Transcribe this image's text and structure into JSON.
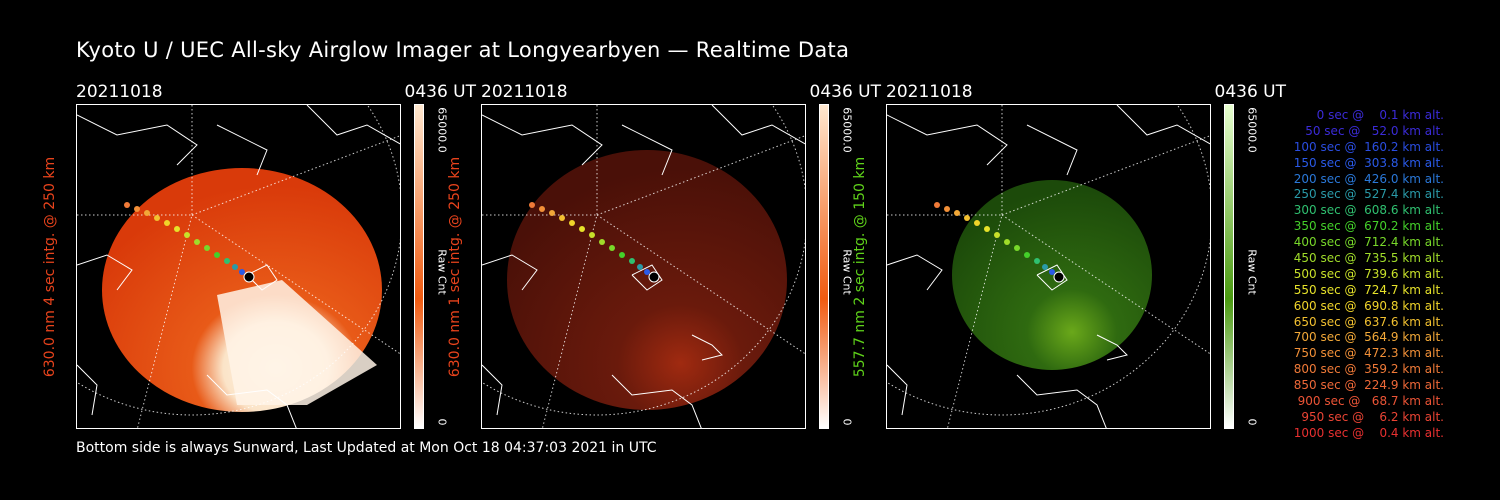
{
  "title": "Kyoto U / UEC All-sky Airglow Imager at Longyearbyen — Realtime Data",
  "footer": "Bottom side is always Sunward, Last Updated at Mon Oct 18 04:37:03 2021 in UTC",
  "panels": [
    {
      "date": "20211018",
      "time": "0436 UT",
      "ylabel": "630.0 nm 4 sec intg. @ 250 km",
      "ylabel_color": "#e8431c",
      "cb_max": "65000.0",
      "cb_unit": "Raw Cnt",
      "cb_min": "0",
      "cb_color": "#f05a10"
    },
    {
      "date": "20211018",
      "time": "0436 UT",
      "ylabel": "630.0 nm 1 sec intg. @ 250 km",
      "ylabel_color": "#e8431c",
      "cb_max": "65000.0",
      "cb_unit": "Raw Cnt",
      "cb_min": "0",
      "cb_color": "#f05a10"
    },
    {
      "date": "20211018",
      "time": "0436 UT",
      "ylabel": "557.7 nm 2 sec intg. @ 150 km",
      "ylabel_color": "#5fd21a",
      "cb_max": "65000.0",
      "cb_unit": "Raw Cnt",
      "cb_min": "0",
      "cb_color": "#4a9a10"
    }
  ],
  "legend": [
    {
      "text": "   0 sec @    0.1 km alt.",
      "color": "#3b2bd8"
    },
    {
      "text": "  50 sec @   52.0 km alt.",
      "color": "#3b2bd8"
    },
    {
      "text": " 100 sec @  160.2 km alt.",
      "color": "#2a4de0"
    },
    {
      "text": " 150 sec @  303.8 km alt.",
      "color": "#2a5ae8"
    },
    {
      "text": " 200 sec @  426.0 km alt.",
      "color": "#2a78d8"
    },
    {
      "text": " 250 sec @  527.4 km alt.",
      "color": "#2a9aa8"
    },
    {
      "text": " 300 sec @  608.6 km alt.",
      "color": "#2fc070"
    },
    {
      "text": " 350 sec @  670.2 km alt.",
      "color": "#44d02a"
    },
    {
      "text": " 400 sec @  712.4 km alt.",
      "color": "#78d82a"
    },
    {
      "text": " 450 sec @  735.5 km alt.",
      "color": "#a0dc2a"
    },
    {
      "text": " 500 sec @  739.6 km alt.",
      "color": "#c8e02a"
    },
    {
      "text": " 550 sec @  724.7 km alt.",
      "color": "#e6e22a"
    },
    {
      "text": " 600 sec @  690.8 km alt.",
      "color": "#f0d42a"
    },
    {
      "text": " 650 sec @  637.6 km alt.",
      "color": "#f2c030"
    },
    {
      "text": " 700 sec @  564.9 km alt.",
      "color": "#f2a838"
    },
    {
      "text": " 750 sec @  472.3 km alt.",
      "color": "#f29038"
    },
    {
      "text": " 800 sec @  359.2 km alt.",
      "color": "#f07a38"
    },
    {
      "text": " 850 sec @  224.9 km alt.",
      "color": "#ee6838"
    },
    {
      "text": " 900 sec @   68.7 km alt.",
      "color": "#ec5436"
    },
    {
      "text": " 950 sec @    6.2 km alt.",
      "color": "#ea4434"
    },
    {
      "text": "1000 sec @    0.4 km alt.",
      "color": "#e83030"
    }
  ]
}
